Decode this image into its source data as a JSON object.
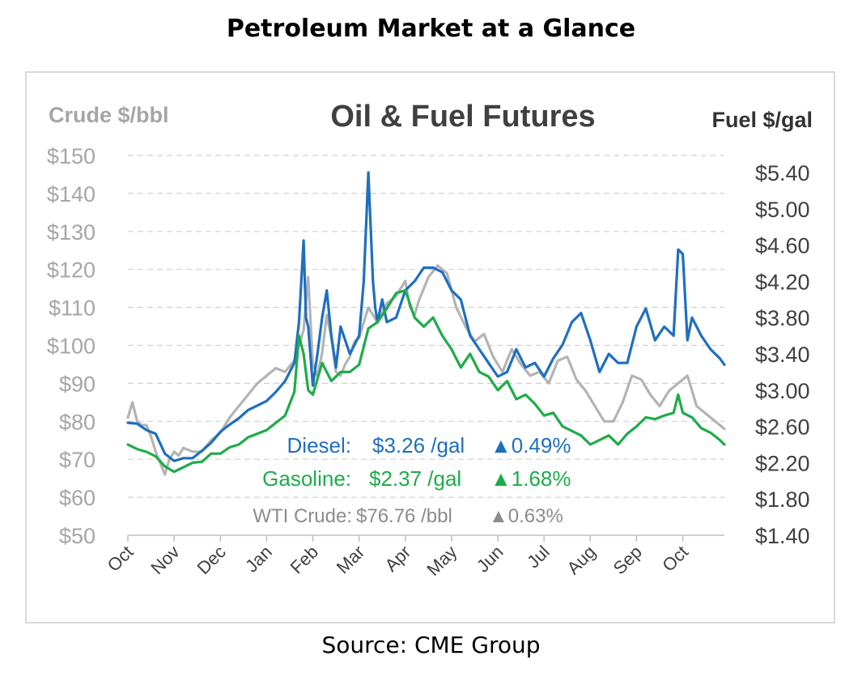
{
  "page": {
    "title": "Petroleum Market at a Glance",
    "source": "Source: CME Group"
  },
  "chart_data": {
    "type": "line",
    "title": "Oil & Fuel Futures",
    "left_axis_label": "Crude $/bbl",
    "right_axis_label": "Fuel $/gal",
    "left_ylim": [
      50,
      150
    ],
    "left_ticks": [
      "$50",
      "$60",
      "$70",
      "$80",
      "$90",
      "$100",
      "$110",
      "$120",
      "$130",
      "$140",
      "$150"
    ],
    "right_ylim": [
      1.4,
      5.4
    ],
    "right_ticks": [
      "$1.40",
      "$1.80",
      "$2.20",
      "$2.60",
      "$3.00",
      "$3.40",
      "$3.80",
      "$4.20",
      "$4.60",
      "$5.00",
      "$5.40"
    ],
    "x_ticks": [
      "Oct",
      "Nov",
      "Dec",
      "Jan",
      "Feb",
      "Mar",
      "Apr",
      "May",
      "Jun",
      "Jul",
      "Aug",
      "Sep",
      "Oct"
    ],
    "grid": true,
    "colors": {
      "diesel": "#1f6fbf",
      "gasoline": "#1fab4a",
      "crude": "#b4b4b4",
      "title": "#404040",
      "axis_label": "#a6a6a6",
      "wti_legend": "#8c8c8c"
    },
    "series": [
      {
        "name": "WTI Crude",
        "axis": "left",
        "color": "#b4b4b4",
        "x": [
          0,
          0.1,
          0.2,
          0.3,
          0.4,
          0.5,
          0.6,
          0.8,
          0.9,
          1.0,
          1.1,
          1.2,
          1.4,
          1.6,
          1.8,
          2.0,
          2.2,
          2.4,
          2.6,
          2.8,
          3.0,
          3.2,
          3.4,
          3.6,
          3.7,
          3.8,
          3.9,
          4.0,
          4.1,
          4.2,
          4.3,
          4.4,
          4.5,
          4.6,
          4.7,
          4.8,
          4.9,
          5.0,
          5.2,
          5.4,
          5.6,
          5.8,
          6.0,
          6.1,
          6.2,
          6.3,
          6.5,
          6.7,
          6.9,
          7.1,
          7.3,
          7.5,
          7.7,
          7.9,
          8.1,
          8.3,
          8.5,
          8.7,
          8.9,
          9.1,
          9.3,
          9.5,
          9.7,
          9.9,
          10.1,
          10.3,
          10.5,
          10.7,
          10.9,
          11.1,
          11.3,
          11.5,
          11.7,
          11.9,
          12.1,
          12.3,
          12.5,
          12.7,
          12.9
        ],
        "values": [
          81,
          85,
          80,
          79,
          79,
          76,
          72,
          66,
          70,
          72,
          71,
          73,
          72,
          72,
          75,
          77,
          81,
          84,
          87,
          90,
          92,
          94,
          93,
          96,
          100,
          104,
          118,
          95,
          92,
          98,
          108,
          102,
          93,
          92,
          95,
          97,
          101,
          102,
          110,
          106,
          111,
          113,
          117,
          110,
          108,
          112,
          118,
          121,
          119,
          110,
          105,
          101,
          103,
          97,
          93,
          99,
          95,
          92,
          93,
          90,
          96,
          97,
          91,
          88,
          84,
          80,
          80,
          85,
          92,
          91,
          87,
          84,
          88,
          90,
          92,
          84,
          82,
          80,
          78
        ]
      },
      {
        "name": "Diesel",
        "axis": "right",
        "color": "#1f6fbf",
        "x": [
          0,
          0.2,
          0.4,
          0.6,
          0.8,
          1.0,
          1.2,
          1.4,
          1.6,
          1.8,
          2.0,
          2.2,
          2.4,
          2.6,
          2.8,
          3.0,
          3.2,
          3.4,
          3.6,
          3.7,
          3.8,
          3.85,
          3.9,
          4.0,
          4.1,
          4.2,
          4.3,
          4.4,
          4.5,
          4.6,
          4.8,
          5.0,
          5.1,
          5.2,
          5.3,
          5.35,
          5.4,
          5.5,
          5.6,
          5.8,
          6.0,
          6.2,
          6.4,
          6.6,
          6.8,
          7.0,
          7.2,
          7.4,
          7.6,
          7.8,
          8.0,
          8.2,
          8.4,
          8.6,
          8.8,
          9.0,
          9.2,
          9.4,
          9.6,
          9.8,
          10.0,
          10.2,
          10.4,
          10.6,
          10.8,
          11.0,
          11.2,
          11.4,
          11.6,
          11.8,
          11.9,
          12.0,
          12.1,
          12.2,
          12.4,
          12.6,
          12.8,
          12.9
        ],
        "values": [
          2.64,
          2.63,
          2.56,
          2.52,
          2.3,
          2.22,
          2.25,
          2.25,
          2.33,
          2.42,
          2.54,
          2.62,
          2.69,
          2.78,
          2.83,
          2.88,
          2.98,
          3.1,
          3.3,
          3.75,
          4.65,
          3.8,
          3.7,
          3.05,
          3.4,
          3.8,
          4.1,
          3.6,
          3.25,
          3.7,
          3.4,
          3.6,
          4.2,
          5.4,
          4.2,
          3.9,
          3.75,
          4.0,
          3.75,
          3.8,
          4.1,
          4.2,
          4.35,
          4.35,
          4.3,
          4.1,
          4.0,
          3.6,
          3.45,
          3.3,
          3.15,
          3.2,
          3.45,
          3.25,
          3.3,
          3.15,
          3.35,
          3.5,
          3.75,
          3.85,
          3.55,
          3.2,
          3.4,
          3.3,
          3.3,
          3.7,
          3.9,
          3.55,
          3.7,
          3.6,
          4.55,
          4.5,
          3.55,
          3.8,
          3.6,
          3.45,
          3.35,
          3.28
        ]
      },
      {
        "name": "Gasoline",
        "axis": "right",
        "color": "#1fab4a",
        "x": [
          0,
          0.2,
          0.4,
          0.6,
          0.8,
          1.0,
          1.2,
          1.4,
          1.6,
          1.8,
          2.0,
          2.2,
          2.4,
          2.6,
          2.8,
          3.0,
          3.2,
          3.4,
          3.6,
          3.7,
          3.8,
          3.9,
          4.0,
          4.2,
          4.4,
          4.6,
          4.8,
          5.0,
          5.2,
          5.4,
          5.6,
          5.8,
          6.0,
          6.2,
          6.4,
          6.6,
          6.8,
          7.0,
          7.2,
          7.4,
          7.6,
          7.8,
          8.0,
          8.2,
          8.4,
          8.6,
          8.8,
          9.0,
          9.2,
          9.4,
          9.6,
          9.8,
          10.0,
          10.2,
          10.4,
          10.6,
          10.8,
          11.0,
          11.2,
          11.4,
          11.6,
          11.8,
          11.9,
          12.0,
          12.2,
          12.4,
          12.6,
          12.8,
          12.9
        ],
        "values": [
          2.4,
          2.35,
          2.32,
          2.27,
          2.16,
          2.1,
          2.15,
          2.2,
          2.21,
          2.3,
          2.3,
          2.37,
          2.4,
          2.48,
          2.52,
          2.56,
          2.64,
          2.72,
          2.98,
          3.6,
          3.4,
          3.0,
          2.95,
          3.3,
          3.1,
          3.2,
          3.2,
          3.28,
          3.68,
          3.75,
          3.9,
          4.07,
          4.1,
          3.8,
          3.7,
          3.8,
          3.6,
          3.45,
          3.25,
          3.4,
          3.2,
          3.15,
          3.0,
          3.1,
          2.9,
          2.95,
          2.85,
          2.72,
          2.75,
          2.6,
          2.55,
          2.5,
          2.4,
          2.45,
          2.5,
          2.4,
          2.52,
          2.6,
          2.7,
          2.68,
          2.72,
          2.75,
          2.95,
          2.75,
          2.7,
          2.58,
          2.53,
          2.45,
          2.4
        ]
      }
    ],
    "legend": [
      {
        "label": "Diesel:",
        "value": "$3.26 /gal",
        "change": "▲0.49%",
        "color": "#1f6fbf"
      },
      {
        "label": "Gasoline:",
        "value": "$2.37 /gal",
        "change": "▲1.68%",
        "color": "#1fab4a"
      },
      {
        "label": "WTI Crude:",
        "value": "$76.76 /bbl",
        "change": "▲0.63%",
        "color": "#8c8c8c"
      }
    ]
  }
}
